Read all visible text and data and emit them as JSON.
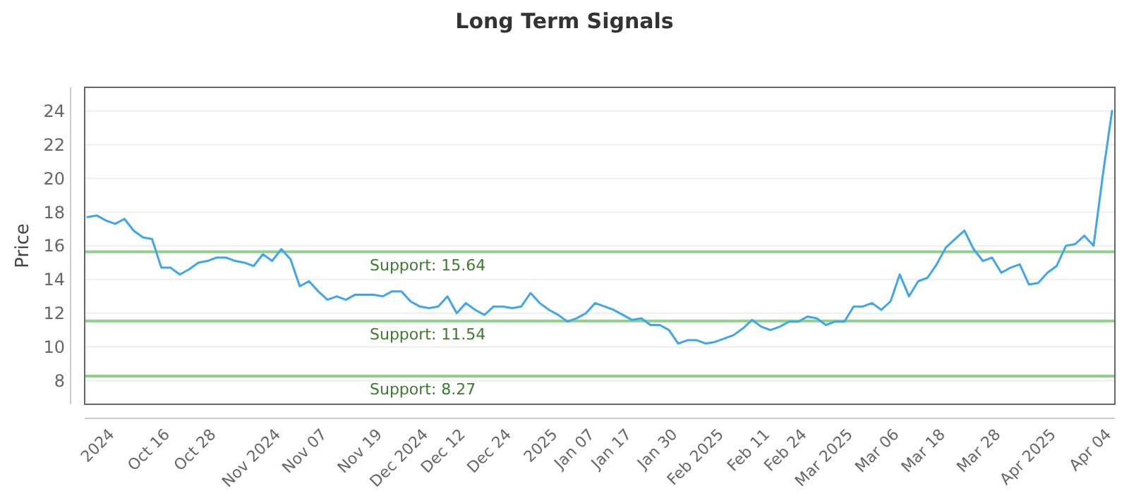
{
  "chart_data": {
    "type": "line",
    "title": "Long Term Signals",
    "ylabel": "Price",
    "categories": [
      null,
      null,
      null,
      "2024",
      null,
      null,
      null,
      null,
      null,
      "Oct 16",
      null,
      null,
      null,
      null,
      "Oct 28",
      null,
      null,
      null,
      null,
      null,
      null,
      "Nov 2024",
      null,
      null,
      null,
      null,
      "Nov 07",
      null,
      null,
      null,
      null,
      null,
      "Nov 19",
      null,
      null,
      null,
      null,
      "Dec 2024",
      null,
      null,
      null,
      "Dec 12",
      null,
      null,
      null,
      null,
      "Dec 24",
      null,
      null,
      null,
      null,
      "2025",
      null,
      null,
      null,
      "Jan 07",
      null,
      null,
      null,
      "Jan 17",
      null,
      null,
      null,
      null,
      "Jan 30",
      null,
      null,
      null,
      null,
      "Feb 2025",
      null,
      null,
      null,
      null,
      "Feb 11",
      null,
      null,
      null,
      "Feb 24",
      null,
      null,
      null,
      null,
      "Mar 2025",
      null,
      null,
      null,
      null,
      "Mar 06",
      null,
      null,
      null,
      null,
      "Mar 18",
      null,
      null,
      null,
      null,
      null,
      "Mar 28",
      null,
      null,
      null,
      null,
      null,
      "Apr 2025",
      null,
      null,
      null,
      null,
      null,
      "Apr 04"
    ],
    "series": [
      {
        "color": "#3fa6ee",
        "values": [
          17.7,
          17.8,
          17.5,
          17.3,
          17.6,
          16.9,
          16.5,
          16.4,
          14.7,
          14.7,
          14.3,
          14.6,
          15.0,
          15.1,
          15.3,
          15.3,
          15.1,
          15.0,
          14.8,
          15.5,
          15.1,
          15.8,
          15.2,
          13.6,
          13.9,
          13.3,
          12.8,
          13.0,
          12.8,
          13.1,
          13.1,
          13.1,
          13.0,
          13.3,
          13.3,
          12.7,
          12.4,
          12.3,
          12.4,
          13.0,
          12.0,
          12.6,
          12.2,
          11.9,
          12.4,
          12.4,
          12.3,
          12.4,
          13.2,
          12.6,
          12.2,
          11.9,
          11.5,
          11.7,
          12.0,
          12.6,
          12.4,
          12.2,
          11.9,
          11.6,
          11.7,
          11.3,
          11.3,
          11.0,
          10.2,
          10.4,
          10.4,
          10.2,
          10.3,
          10.5,
          10.7,
          11.1,
          11.6,
          11.2,
          11.0,
          11.2,
          11.5,
          11.5,
          11.8,
          11.7,
          11.3,
          11.5,
          11.5,
          12.4,
          12.4,
          12.6,
          12.2,
          12.7,
          14.3,
          13.0,
          13.9,
          14.1,
          14.9,
          15.9,
          16.4,
          16.9,
          15.8,
          15.1,
          15.3,
          14.4,
          14.7,
          14.9,
          13.7,
          13.8,
          14.4,
          14.8,
          16.0,
          16.1,
          16.6,
          16.0,
          20.2,
          24.0
        ]
      }
    ],
    "ylim": [
      6.6,
      25.4
    ],
    "yticks": [
      8,
      10,
      12,
      14,
      16,
      18,
      20,
      22,
      24
    ],
    "grid": "y",
    "ref_lines": [
      {
        "axis": "y",
        "value": 15.64,
        "label": "Support: 15.64",
        "color": "#8fd08a"
      },
      {
        "axis": "y",
        "value": 11.54,
        "label": "Support: 11.54",
        "color": "#8fd08a"
      },
      {
        "axis": "y",
        "value": 8.27,
        "label": "Support: 8.27",
        "color": "#8fd08a"
      }
    ]
  }
}
